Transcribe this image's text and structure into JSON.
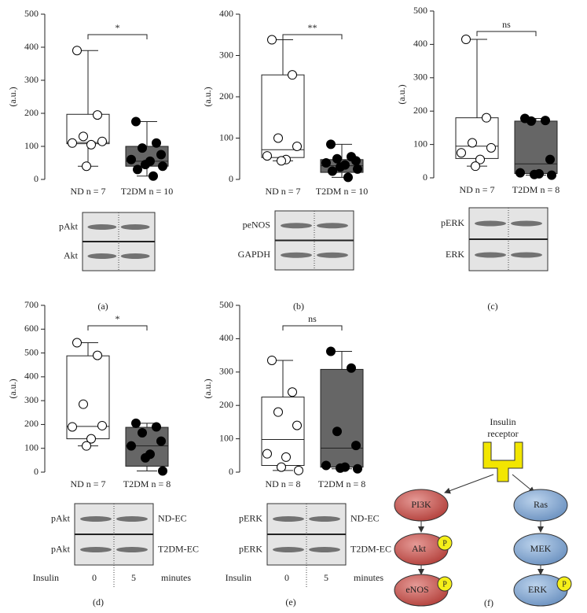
{
  "chart_data": [
    {
      "type": "box",
      "ylabel": "(a.u.)",
      "panel": "(a)",
      "significance": "*",
      "categories": [
        "ND n = 7",
        "T2DM n = 10"
      ],
      "colors": [
        "#ffffff",
        "#666666"
      ],
      "point_colors": [
        "#ffffff",
        "#000000"
      ],
      "ylim": [
        0,
        500
      ],
      "yticks": [
        0,
        100,
        200,
        300,
        400,
        500
      ],
      "points": [
        [
          390,
          195,
          130,
          115,
          110,
          105,
          40
        ],
        [
          175,
          110,
          95,
          75,
          60,
          55,
          45,
          40,
          30,
          10
        ]
      ],
      "boxes": [
        {
          "min": 40,
          "q1": 108,
          "median": 112,
          "q3": 197,
          "max": 390
        },
        {
          "min": 10,
          "q1": 40,
          "median": 55,
          "q3": 100,
          "max": 175
        }
      ],
      "blot": {
        "rows": [
          {
            "protein": "pAkt"
          },
          {
            "protein": "Akt"
          }
        ]
      }
    },
    {
      "type": "box",
      "ylabel": "(a.u.)",
      "panel": "(b)",
      "significance": "**",
      "categories": [
        "ND n = 7",
        "T2DM n = 10"
      ],
      "colors": [
        "#ffffff",
        "#666666"
      ],
      "point_colors": [
        "#ffffff",
        "#000000"
      ],
      "ylim": [
        0,
        400
      ],
      "yticks": [
        0,
        100,
        200,
        300,
        400
      ],
      "points": [
        [
          338,
          253,
          100,
          80,
          57,
          48,
          45
        ],
        [
          85,
          55,
          50,
          45,
          40,
          35,
          30,
          25,
          20,
          5
        ]
      ],
      "boxes": [
        {
          "min": 45,
          "q1": 53,
          "median": 72,
          "q3": 253,
          "max": 338
        },
        {
          "min": 5,
          "q1": 17,
          "median": 33,
          "q3": 48,
          "max": 85
        }
      ],
      "blot": {
        "rows": [
          {
            "protein": "peNOS"
          },
          {
            "protein": "GAPDH"
          }
        ]
      }
    },
    {
      "type": "box",
      "ylabel": "(a.u.)",
      "panel": "(c)",
      "significance": "ns",
      "categories": [
        "ND n = 7",
        "T2DM n = 8"
      ],
      "colors": [
        "#ffffff",
        "#666666"
      ],
      "point_colors": [
        "#ffffff",
        "#000000"
      ],
      "ylim": [
        0,
        500
      ],
      "yticks": [
        0,
        100,
        200,
        300,
        400,
        500
      ],
      "points": [
        [
          415,
          180,
          105,
          90,
          75,
          55,
          35
        ],
        [
          178,
          172,
          170,
          55,
          15,
          12,
          10,
          8
        ]
      ],
      "boxes": [
        {
          "min": 35,
          "q1": 58,
          "median": 95,
          "q3": 180,
          "max": 415
        },
        {
          "min": 8,
          "q1": 13,
          "median": 42,
          "q3": 170,
          "max": 178
        }
      ],
      "blot": {
        "rows": [
          {
            "protein": "pERK"
          },
          {
            "protein": "ERK"
          }
        ]
      }
    },
    {
      "type": "box",
      "ylabel": "(a.u.)",
      "panel": "(d)",
      "significance": "*",
      "categories": [
        "ND n = 7",
        "T2DM n = 8"
      ],
      "colors": [
        "#ffffff",
        "#666666"
      ],
      "point_colors": [
        "#ffffff",
        "#000000"
      ],
      "ylim": [
        0,
        700
      ],
      "yticks": [
        0,
        100,
        200,
        300,
        400,
        500,
        600,
        700
      ],
      "points": [
        [
          543,
          490,
          285,
          195,
          190,
          140,
          110
        ],
        [
          205,
          190,
          165,
          130,
          110,
          75,
          60,
          5
        ]
      ],
      "boxes": [
        {
          "min": 110,
          "q1": 140,
          "median": 192,
          "q3": 488,
          "max": 543
        },
        {
          "min": 5,
          "q1": 25,
          "median": 110,
          "q3": 188,
          "max": 205
        }
      ],
      "blot": {
        "rows": [
          {
            "protein": "pAkt",
            "sample": "ND-EC"
          },
          {
            "protein": "pAkt",
            "sample": "T2DM-EC"
          }
        ],
        "treatment": "Insulin",
        "times": [
          0,
          5
        ],
        "time_unit": "minutes"
      }
    },
    {
      "type": "box",
      "ylabel": "(a.u.)",
      "panel": "(e)",
      "significance": "ns",
      "categories": [
        "ND n = 8",
        "T2DM n = 8"
      ],
      "colors": [
        "#ffffff",
        "#666666"
      ],
      "point_colors": [
        "#ffffff",
        "#000000"
      ],
      "ylim": [
        0,
        500
      ],
      "yticks": [
        0,
        100,
        200,
        300,
        400,
        500
      ],
      "points": [
        [
          335,
          240,
          180,
          140,
          55,
          45,
          15,
          5
        ],
        [
          362,
          312,
          122,
          80,
          20,
          15,
          12,
          10
        ]
      ],
      "boxes": [
        {
          "min": 5,
          "q1": 20,
          "median": 98,
          "q3": 225,
          "max": 335
        },
        {
          "min": 10,
          "q1": 15,
          "median": 72,
          "q3": 308,
          "max": 362
        }
      ],
      "blot": {
        "rows": [
          {
            "protein": "pERK",
            "sample": "ND-EC"
          },
          {
            "protein": "pERK",
            "sample": "T2DM-EC"
          }
        ],
        "treatment": "Insulin",
        "times": [
          0,
          5
        ],
        "time_unit": "minutes"
      }
    }
  ],
  "diagram": {
    "receptor": [
      "Insulin",
      "receptor"
    ],
    "phospho": "P",
    "left": [
      "PI3K",
      "Akt",
      "eNOS"
    ],
    "right": [
      "Ras",
      "MEK",
      "ERK"
    ],
    "panel": "(f)"
  }
}
